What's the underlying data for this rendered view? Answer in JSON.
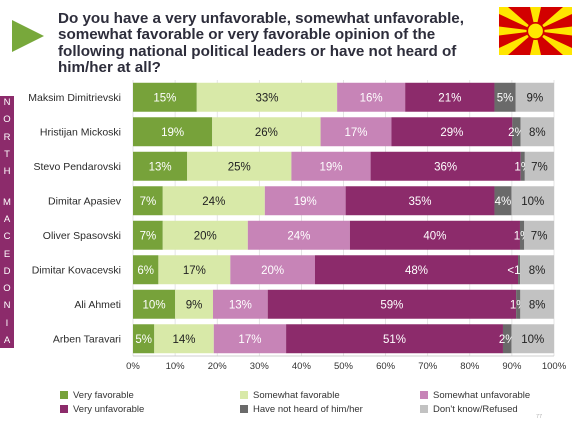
{
  "title": "Do you have a very unfavorable, somewhat unfavorable, somewhat favorable or very favorable opinion of the following national political leaders or have not heard of him/her at all?",
  "country_label": "NORTH MACEDONIA",
  "page_number": "77",
  "colors": {
    "very_favorable": "#77a23a",
    "somewhat_favorable": "#d8e9a8",
    "somewhat_unfavorable": "#c784b7",
    "very_unfavorable": "#8c2b6b",
    "not_heard": "#6a6a6a",
    "dont_know": "#c2c2c2",
    "accent": "#8c2b6b",
    "arrow": "#78a83b",
    "flag_red": "#d20000",
    "flag_yellow": "#ffe600"
  },
  "chart_data": {
    "type": "bar",
    "orientation": "horizontal",
    "stacked": "percent",
    "categories": [
      "Maksim Dimitrievski",
      "Hristijan Mickoski",
      "Stevo Pendarovski",
      "Dimitar Apasiev",
      "Oliver Spasovski",
      "Dimitar Kovacevski",
      "Ali Ahmeti",
      "Arben Taravari"
    ],
    "series": [
      {
        "name": "Very favorable",
        "values": [
          15,
          19,
          13,
          7,
          7,
          6,
          10,
          5
        ],
        "labels": [
          "15%",
          "19%",
          "13%",
          "7%",
          "7%",
          "6%",
          "10%",
          "5%"
        ],
        "label_color": "#ffffff"
      },
      {
        "name": "Somewhat favorable",
        "values": [
          33,
          26,
          25,
          24,
          20,
          17,
          9,
          14
        ],
        "labels": [
          "33%",
          "26%",
          "25%",
          "24%",
          "20%",
          "17%",
          "9%",
          "14%"
        ],
        "label_color": "#222222"
      },
      {
        "name": "Somewhat unfavorable",
        "values": [
          16,
          17,
          19,
          19,
          24,
          20,
          13,
          17
        ],
        "labels": [
          "16%",
          "17%",
          "19%",
          "19%",
          "24%",
          "20%",
          "13%",
          "17%"
        ],
        "label_color": "#ffffff"
      },
      {
        "name": "Very unfavorable",
        "values": [
          21,
          29,
          36,
          35,
          40,
          48,
          59,
          51
        ],
        "labels": [
          "21%",
          "29%",
          "36%",
          "35%",
          "40%",
          "48%",
          "59%",
          "51%"
        ],
        "label_color": "#ffffff"
      },
      {
        "name": "Have not heard of him/her",
        "values": [
          5,
          2,
          1,
          4,
          1,
          0.5,
          1,
          2
        ],
        "labels": [
          "5%",
          "2%",
          "1%",
          "4%",
          "1%",
          "<1%",
          "1%",
          "2%"
        ],
        "label_color": "#ffffff"
      },
      {
        "name": "Don't know/Refused",
        "values": [
          9,
          8,
          7,
          10,
          7,
          8,
          8,
          10
        ],
        "labels": [
          "9%",
          "8%",
          "7%",
          "10%",
          "7%",
          "8%",
          "8%",
          "10%"
        ],
        "label_color": "#222222"
      }
    ],
    "x_ticks": [
      "0%",
      "10%",
      "20%",
      "30%",
      "40%",
      "50%",
      "60%",
      "70%",
      "80%",
      "90%",
      "100%"
    ],
    "xlim": [
      0,
      100
    ],
    "grid": true,
    "legend": {
      "placement": "bottom",
      "items": [
        "Very favorable",
        "Somewhat favorable",
        "Somewhat unfavorable",
        "Very unfavorable",
        "Have not heard of him/her",
        "Don't know/Refused"
      ]
    }
  }
}
